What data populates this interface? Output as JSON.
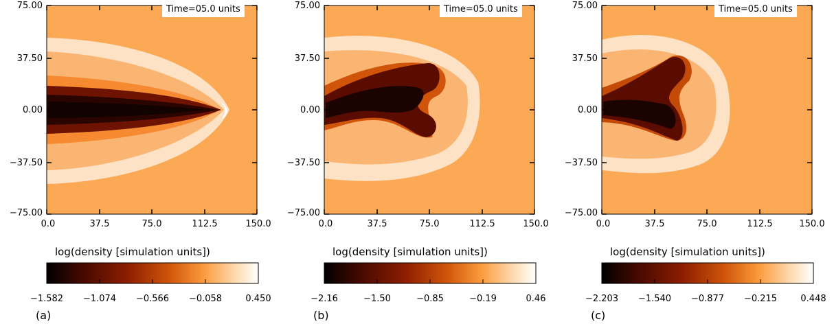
{
  "colors": {
    "background_medium": "#fca956",
    "colormap": [
      "#000000",
      "#4a0a00",
      "#8c1d00",
      "#d0550a",
      "#fb9a3c",
      "#fdd6a6",
      "#ffffff"
    ]
  },
  "panels": [
    {
      "id": "a",
      "letter": "(a)",
      "time_label": "Time=05.0 units",
      "y_ticks": [
        "75.00",
        "37.50",
        "0.00",
        "−37.50",
        "−75.00"
      ],
      "x_ticks": [
        "0.0",
        "37.5",
        "75.0",
        "112.5",
        "150.0"
      ],
      "colorbar_title": "log(density [simulation units])",
      "colorbar_ticks": [
        "−1.582",
        "−1.074",
        "−0.566",
        "−0.058",
        "0.450"
      ]
    },
    {
      "id": "b",
      "letter": "(b)",
      "time_label": "Time=05.0 units",
      "y_ticks": [
        "75.00",
        "37.50",
        "0.00",
        "−37.50",
        "−75.00"
      ],
      "x_ticks": [
        "0.0",
        "37.5",
        "75.0",
        "112.5",
        "150.0"
      ],
      "colorbar_title": "log(density [simulation units])",
      "colorbar_ticks": [
        "−2.16",
        "−1.50",
        "−0.85",
        "−0.19",
        "0.46"
      ]
    },
    {
      "id": "c",
      "letter": "(c)",
      "time_label": "Time=05.0 units",
      "y_ticks": [
        "75.00",
        "37.50",
        "0.00",
        "−37.50",
        "−75.00"
      ],
      "x_ticks": [
        "0.0",
        "37.5",
        "75.0",
        "112.5",
        "150.0"
      ],
      "colorbar_title": "log(density [simulation units])",
      "colorbar_ticks": [
        "−2.203",
        "−1.540",
        "−0.877",
        "−0.215",
        "0.448"
      ]
    }
  ]
}
